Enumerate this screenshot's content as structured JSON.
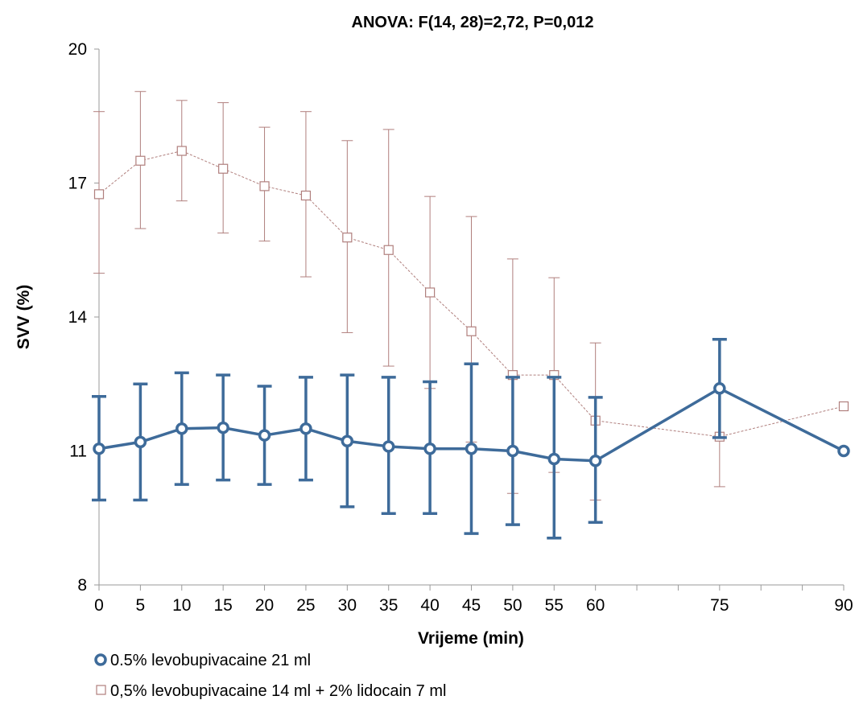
{
  "chart_data": {
    "type": "line",
    "title": "ANOVA: F(14, 28)=2,72, P=0,012",
    "xlabel": "Vrijeme (min)",
    "ylabel": "SVV (%)",
    "xlim": [
      0,
      90
    ],
    "ylim": [
      8,
      20
    ],
    "x": [
      0,
      5,
      10,
      15,
      20,
      25,
      30,
      35,
      40,
      45,
      50,
      55,
      60,
      75,
      90
    ],
    "x_ticks": [
      0,
      5,
      10,
      15,
      20,
      25,
      30,
      35,
      40,
      45,
      50,
      55,
      60,
      75,
      90
    ],
    "x_minor_ticks": [
      0,
      5,
      10,
      15,
      20,
      25,
      30,
      35,
      40,
      45,
      50,
      55,
      60,
      65,
      70,
      75,
      80,
      85,
      90
    ],
    "y_ticks": [
      8,
      11,
      14,
      17,
      20
    ],
    "grid": false,
    "legend_position": "bottom-left",
    "series": [
      {
        "name": "0.5% levobupivacaine 21 ml",
        "marker": "circle",
        "color": "#3E6B9A",
        "values": [
          11.05,
          11.2,
          11.5,
          11.52,
          11.35,
          11.5,
          11.22,
          11.1,
          11.05,
          11.05,
          11.0,
          10.82,
          10.78,
          12.4,
          11.0
        ],
        "err_upper": [
          12.22,
          12.5,
          12.75,
          12.7,
          12.45,
          12.65,
          12.7,
          12.65,
          12.55,
          12.95,
          12.65,
          12.65,
          12.2,
          13.5,
          11.0
        ],
        "err_lower": [
          9.9,
          9.9,
          10.25,
          10.35,
          10.25,
          10.35,
          9.75,
          9.6,
          9.6,
          9.15,
          9.35,
          9.05,
          9.4,
          11.3,
          11.0
        ]
      },
      {
        "name": "0,5% levobupivacaine 14 ml + 2% lidocain 7 ml",
        "marker": "square",
        "color": "#B07F7D",
        "values": [
          16.75,
          17.5,
          17.72,
          17.32,
          16.93,
          16.72,
          15.78,
          15.5,
          14.55,
          13.68,
          12.7,
          12.7,
          11.68,
          11.32,
          12.0
        ],
        "err_upper": [
          18.6,
          19.05,
          18.85,
          18.8,
          18.25,
          18.6,
          17.95,
          18.2,
          16.7,
          16.25,
          15.3,
          14.88,
          13.42,
          12.45,
          12.0
        ],
        "err_lower": [
          14.98,
          15.98,
          16.6,
          15.88,
          15.7,
          14.9,
          13.65,
          12.9,
          12.4,
          11.2,
          10.05,
          10.52,
          9.9,
          10.2,
          12.0
        ]
      }
    ]
  }
}
